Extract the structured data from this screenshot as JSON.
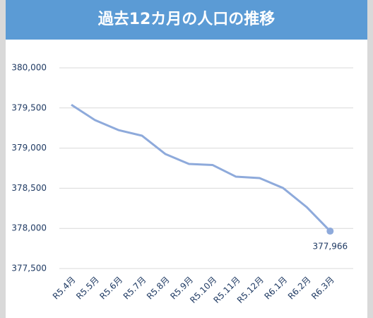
{
  "chart_data": {
    "type": "line",
    "title": "過去12カ月の人口の推移",
    "categories": [
      "R5.4月",
      "R5.5月",
      "R5.6月",
      "R5.7月",
      "R5.8月",
      "R5.9月",
      "R5.10月",
      "R5.11月",
      "R5.12月",
      "R6.1月",
      "R6.2月",
      "R6.3月"
    ],
    "series": [
      {
        "name": "人口",
        "color": "#8eaadb",
        "values": [
          379540,
          379350,
          379225,
          379155,
          378926,
          378803,
          378790,
          378644,
          378627,
          378503,
          378266,
          377966
        ],
        "value_labels": [
          null,
          null,
          null,
          null,
          null,
          null,
          null,
          null,
          null,
          null,
          null,
          "377,966"
        ]
      }
    ],
    "ylim": [
      377500,
      380000
    ],
    "yticks": [
      {
        "value": 377500,
        "label": "377,500"
      },
      {
        "value": 378000,
        "label": "378,000"
      },
      {
        "value": 378500,
        "label": "378,500"
      },
      {
        "value": 379000,
        "label": "379,000"
      },
      {
        "value": 379500,
        "label": "379,500"
      },
      {
        "value": 380000,
        "label": "380,000"
      }
    ],
    "grid": true
  }
}
